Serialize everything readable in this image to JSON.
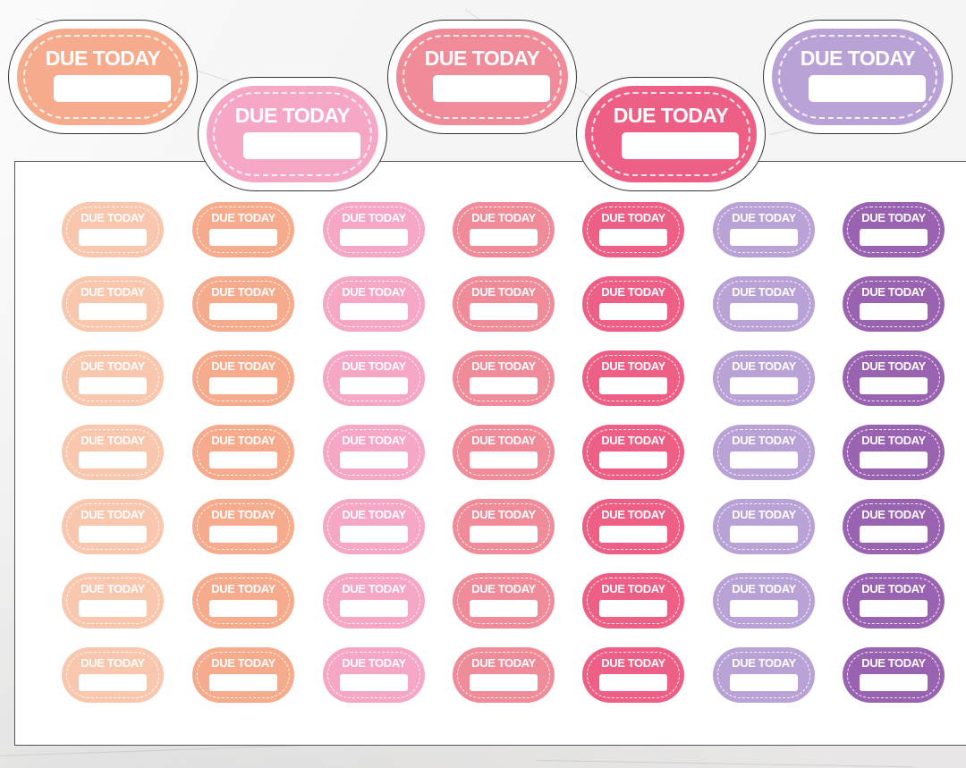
{
  "sticker_text": "DUE TODAY",
  "colors": {
    "peach_light": "#f9c7ad",
    "peach": "#f6ab8d",
    "pink_light": "#f6a7c5",
    "coral_pink": "#f08c99",
    "hot_pink": "#ee5f86",
    "lavender": "#b9a2d5",
    "purple": "#9a63b1"
  },
  "large_stickers": [
    {
      "label": "DUE TODAY",
      "color": "#f6ab8d"
    },
    {
      "label": "DUE TODAY",
      "color": "#f6a7c5"
    },
    {
      "label": "DUE TODAY",
      "color": "#f08c99"
    },
    {
      "label": "DUE TODAY",
      "color": "#ee5f86"
    },
    {
      "label": "DUE TODAY",
      "color": "#b9a2d5"
    }
  ],
  "sheet_columns": [
    {
      "color": "#f9c7ad"
    },
    {
      "color": "#f6ab8d"
    },
    {
      "color": "#f6a7c5"
    },
    {
      "color": "#f08c99"
    },
    {
      "color": "#ee5f86"
    },
    {
      "color": "#b9a2d5"
    },
    {
      "color": "#9a63b1"
    }
  ],
  "sheet_rows": 7
}
